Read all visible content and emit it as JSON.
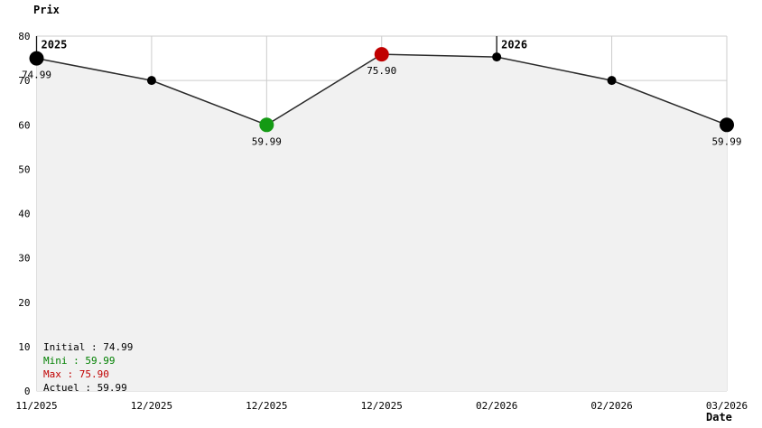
{
  "chart_data": {
    "type": "line",
    "ylabel": "Prix",
    "xlabel": "Date",
    "ylim": [
      0,
      80
    ],
    "y_ticks": [
      0,
      10,
      20,
      30,
      40,
      50,
      60,
      70,
      80
    ],
    "x_tick_labels": [
      "11/2025",
      "12/2025",
      "12/2025",
      "12/2025",
      "02/2026",
      "02/2026",
      "03/2026"
    ],
    "series": [
      {
        "name": "prix",
        "values": [
          74.99,
          70,
          59.99,
          75.9,
          75.3,
          70,
          59.99
        ]
      }
    ],
    "point_styles": [
      {
        "size": "large",
        "color": "#000000",
        "label": "74.99",
        "label_color": "#000000"
      },
      {
        "size": "small",
        "color": "#000000",
        "label": "",
        "label_color": ""
      },
      {
        "size": "large",
        "color": "#149a14",
        "label": "59.99",
        "label_color": "#008000"
      },
      {
        "size": "large",
        "color": "#c00000",
        "label": "75.90",
        "label_color": "#c00000"
      },
      {
        "size": "small",
        "color": "#000000",
        "label": "",
        "label_color": ""
      },
      {
        "size": "small",
        "color": "#000000",
        "label": "",
        "label_color": ""
      },
      {
        "size": "large",
        "color": "#000000",
        "label": "59.99",
        "label_color": "#000000"
      }
    ],
    "year_markers": [
      {
        "label": "2025",
        "index": 0
      },
      {
        "label": "2026",
        "index": 4
      }
    ],
    "grid": true,
    "legend_position": "bottom-left",
    "colors": {
      "line": "#2a2a2a",
      "grid": "#cccccc",
      "area_fill": "#f1f1f1",
      "marker_line": "#111111"
    }
  },
  "legend": {
    "items": [
      {
        "text": "Initial : 74.99",
        "color": "#000000"
      },
      {
        "text": "Mini : 59.99",
        "color": "#008000"
      },
      {
        "text": "Max : 75.90",
        "color": "#c00000"
      },
      {
        "text": "Actuel : 59.99",
        "color": "#000000"
      }
    ]
  }
}
